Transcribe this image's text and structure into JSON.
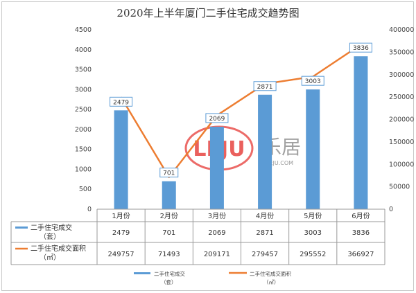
{
  "chart_data": {
    "type": "bar",
    "title": "2020年上半年厦门二手住宅成交趋势图",
    "categories": [
      "1月份",
      "2月份",
      "3月份",
      "4月份",
      "5月份",
      "6月份"
    ],
    "series": [
      {
        "name": "二手住宅成交（套）",
        "kind": "bar",
        "axis": "left",
        "values": [
          2479,
          701,
          2069,
          2871,
          3003,
          3836
        ],
        "color": "#5b9bd5"
      },
      {
        "name": "二手住宅成交面积（㎡）",
        "kind": "line",
        "axis": "right",
        "values": [
          249757,
          71493,
          209171,
          279457,
          295552,
          366927
        ],
        "color": "#ed7d31"
      }
    ],
    "ylim": [
      0,
      4500
    ],
    "y_ticks": [
      "0",
      "500",
      "1000",
      "1500",
      "2000",
      "2500",
      "3000",
      "3500",
      "4000",
      "4500"
    ],
    "y2lim": [
      0,
      400000
    ],
    "y2_ticks": [
      "0",
      "50000",
      "100000",
      "150000",
      "200000",
      "250000",
      "300000",
      "350000",
      "400000"
    ],
    "data_table": true,
    "legend": "bottom",
    "legend_entries": [
      {
        "label": "二手住宅成交",
        "sub": "（套）"
      },
      {
        "label": "二手住宅成交面积",
        "sub": "（㎡）"
      }
    ],
    "table_row_labels": [
      {
        "line1": "二手住宅成交",
        "line2": "（套）"
      },
      {
        "line1": "二手住宅成交面积",
        "line2": "（㎡）"
      }
    ]
  },
  "watermark": {
    "logo_text": "LEJU",
    "cn_text": "乐居",
    "url_text": "LEJU.COM",
    "color": "#e53935"
  }
}
